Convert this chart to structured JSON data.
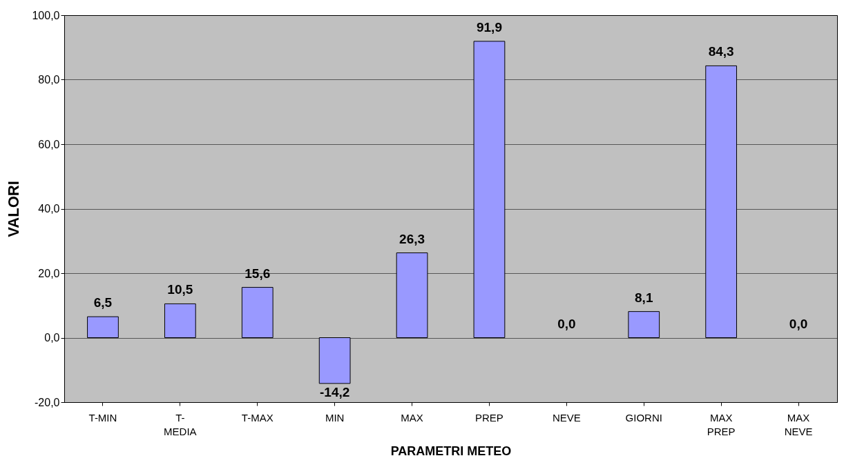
{
  "chart_data": {
    "type": "bar",
    "xlabel": "PARAMETRI METEO",
    "ylabel": "VALORI",
    "categories": [
      "T-MIN",
      "T-MEDIA",
      "T-MAX",
      "MIN",
      "MAX",
      "PREP",
      "NEVE",
      "GIORNI",
      "MAX PREP",
      "MAX NEVE"
    ],
    "values": [
      6.5,
      10.5,
      15.6,
      -14.2,
      26.3,
      91.9,
      0.0,
      8.1,
      84.3,
      0.0
    ],
    "value_labels": [
      "6,5",
      "10,5",
      "15,6",
      "-14,2",
      "26,3",
      "91,9",
      "0,0",
      "8,1",
      "84,3",
      "0,0"
    ],
    "color": "#9999ff",
    "ylim": [
      -20,
      100
    ],
    "yticks": [
      {
        "value": -20,
        "label": "-20,0"
      },
      {
        "value": 0,
        "label": "0,0"
      },
      {
        "value": 20,
        "label": "20,0"
      },
      {
        "value": 40,
        "label": "40,0"
      },
      {
        "value": 60,
        "label": "60,0"
      },
      {
        "value": 80,
        "label": "80,0"
      },
      {
        "value": 100,
        "label": "100,0"
      }
    ],
    "grid": "y"
  }
}
